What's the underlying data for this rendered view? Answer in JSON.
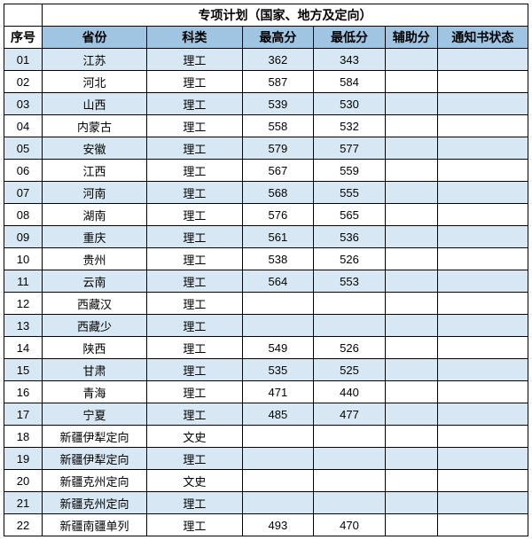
{
  "title": "专项计划（国家、地方及定向）",
  "headers": {
    "seq": "序号",
    "prov": "省份",
    "subj": "科类",
    "max": "最高分",
    "min": "最低分",
    "aux": "辅助分",
    "stat": "通知书状态"
  },
  "colors": {
    "header_bg": "#9fc5e2",
    "row_shade": "#d7e8f4",
    "row_plain": "#ffffff",
    "border": "#000000"
  },
  "rows": [
    {
      "seq": "01",
      "prov": "江苏",
      "subj": "理工",
      "max": "362",
      "min": "343",
      "aux": "",
      "stat": "",
      "shade": true
    },
    {
      "seq": "02",
      "prov": "河北",
      "subj": "理工",
      "max": "587",
      "min": "584",
      "aux": "",
      "stat": "",
      "shade": false
    },
    {
      "seq": "03",
      "prov": "山西",
      "subj": "理工",
      "max": "539",
      "min": "530",
      "aux": "",
      "stat": "",
      "shade": true
    },
    {
      "seq": "04",
      "prov": "内蒙古",
      "subj": "理工",
      "max": "558",
      "min": "532",
      "aux": "",
      "stat": "",
      "shade": false
    },
    {
      "seq": "05",
      "prov": "安徽",
      "subj": "理工",
      "max": "579",
      "min": "577",
      "aux": "",
      "stat": "",
      "shade": true
    },
    {
      "seq": "06",
      "prov": "江西",
      "subj": "理工",
      "max": "567",
      "min": "559",
      "aux": "",
      "stat": "",
      "shade": false
    },
    {
      "seq": "07",
      "prov": "河南",
      "subj": "理工",
      "max": "568",
      "min": "555",
      "aux": "",
      "stat": "",
      "shade": true
    },
    {
      "seq": "08",
      "prov": "湖南",
      "subj": "理工",
      "max": "576",
      "min": "565",
      "aux": "",
      "stat": "",
      "shade": false
    },
    {
      "seq": "09",
      "prov": "重庆",
      "subj": "理工",
      "max": "561",
      "min": "536",
      "aux": "",
      "stat": "",
      "shade": true
    },
    {
      "seq": "10",
      "prov": "贵州",
      "subj": "理工",
      "max": "538",
      "min": "526",
      "aux": "",
      "stat": "",
      "shade": false
    },
    {
      "seq": "11",
      "prov": "云南",
      "subj": "理工",
      "max": "564",
      "min": "553",
      "aux": "",
      "stat": "",
      "shade": true
    },
    {
      "seq": "12",
      "prov": "西藏汉",
      "subj": "理工",
      "max": "",
      "min": "",
      "aux": "",
      "stat": "",
      "shade": false
    },
    {
      "seq": "13",
      "prov": "西藏少",
      "subj": "理工",
      "max": "",
      "min": "",
      "aux": "",
      "stat": "",
      "shade": true
    },
    {
      "seq": "14",
      "prov": "陕西",
      "subj": "理工",
      "max": "549",
      "min": "526",
      "aux": "",
      "stat": "",
      "shade": false
    },
    {
      "seq": "15",
      "prov": "甘肃",
      "subj": "理工",
      "max": "535",
      "min": "525",
      "aux": "",
      "stat": "",
      "shade": true
    },
    {
      "seq": "16",
      "prov": "青海",
      "subj": "理工",
      "max": "471",
      "min": "440",
      "aux": "",
      "stat": "",
      "shade": false
    },
    {
      "seq": "17",
      "prov": "宁夏",
      "subj": "理工",
      "max": "485",
      "min": "477",
      "aux": "",
      "stat": "",
      "shade": true
    },
    {
      "seq": "18",
      "prov": "新疆伊犁定向",
      "subj": "文史",
      "max": "",
      "min": "",
      "aux": "",
      "stat": "",
      "shade": false
    },
    {
      "seq": "19",
      "prov": "新疆伊犁定向",
      "subj": "理工",
      "max": "",
      "min": "",
      "aux": "",
      "stat": "",
      "shade": true
    },
    {
      "seq": "20",
      "prov": "新疆克州定向",
      "subj": "文史",
      "max": "",
      "min": "",
      "aux": "",
      "stat": "",
      "shade": false
    },
    {
      "seq": "21",
      "prov": "新疆克州定向",
      "subj": "理工",
      "max": "",
      "min": "",
      "aux": "",
      "stat": "",
      "shade": true
    },
    {
      "seq": "22",
      "prov": "新疆南疆单列",
      "subj": "理工",
      "max": "493",
      "min": "470",
      "aux": "",
      "stat": "",
      "shade": false
    }
  ]
}
